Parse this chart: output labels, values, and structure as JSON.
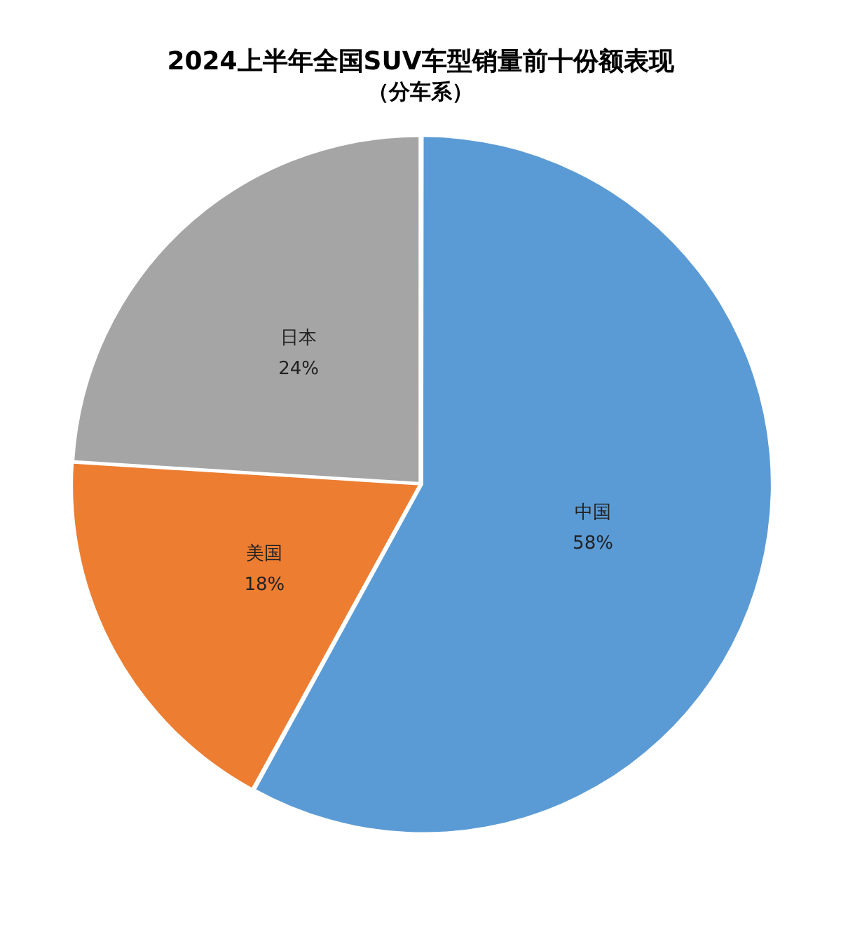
{
  "chart_data": {
    "type": "pie",
    "title": "2024上半年全国SUV车型销量前十份额表现",
    "subtitle": "（分车系）",
    "categories": [
      "中国",
      "美国",
      "日本"
    ],
    "values": [
      58,
      18,
      24
    ],
    "value_labels": [
      "58%",
      "18%",
      "24%"
    ],
    "colors": [
      "#5b9bd5",
      "#ed7d31",
      "#a5a5a5"
    ],
    "legend": false
  }
}
